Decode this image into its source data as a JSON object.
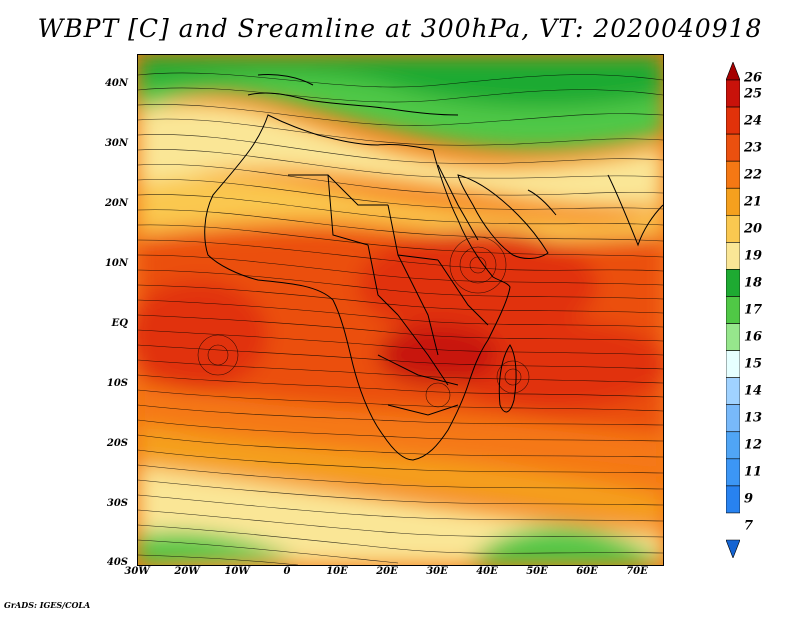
{
  "title": "WBPT [C] and Sreamline at 300hPa, VT: 2020040918",
  "credit": "GrADS: IGES/COLA",
  "map": {
    "lon_range": [
      -30,
      75
    ],
    "lat_range": [
      -40,
      45
    ],
    "lat_labels": [
      "40N",
      "30N",
      "20N",
      "10N",
      "EQ",
      "10S",
      "20S",
      "30S",
      "40S"
    ],
    "lat_values": [
      40,
      30,
      20,
      10,
      0,
      -10,
      -20,
      -30,
      -40
    ],
    "lon_labels": [
      "30W",
      "20W",
      "10W",
      "0",
      "10E",
      "20E",
      "30E",
      "40E",
      "50E",
      "60E",
      "70E"
    ],
    "lon_values": [
      -30,
      -20,
      -10,
      0,
      10,
      20,
      30,
      40,
      50,
      60,
      70
    ]
  },
  "colorbar": {
    "labels": [
      "26",
      "25",
      "24",
      "23",
      "22",
      "21",
      "20",
      "19",
      "18",
      "17",
      "16",
      "15",
      "14",
      "13",
      "12",
      "11",
      "9",
      "7"
    ],
    "colors": [
      "#a50000",
      "#c8120a",
      "#e1320a",
      "#eb500f",
      "#f57814",
      "#f5a01e",
      "#fac850",
      "#fae696",
      "#1eaa32",
      "#50c846",
      "#96e68c",
      "#e6ffff",
      "#a0d2ff",
      "#78b9fa",
      "#50a5f5",
      "#3c96f5",
      "#2882f0",
      "#1464d2"
    ]
  }
}
